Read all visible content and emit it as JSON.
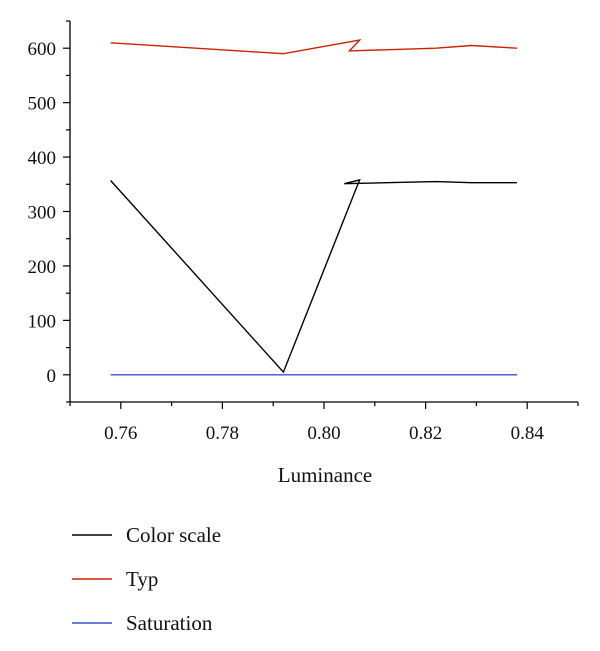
{
  "chart_data": {
    "type": "line",
    "title": "",
    "xlabel": "Luminance",
    "ylabel": "",
    "xlim": [
      0.75,
      0.85
    ],
    "ylim": [
      -50,
      650
    ],
    "grid": false,
    "legend_position": "bottom",
    "x_ticks": [
      0.76,
      0.78,
      0.8,
      0.82,
      0.84
    ],
    "x_tick_labels": [
      "0.76",
      "0.78",
      "0.80",
      "0.82",
      "0.84"
    ],
    "y_ticks": [
      0,
      100,
      200,
      300,
      400,
      500,
      600
    ],
    "y_tick_labels": [
      "0",
      "100",
      "200",
      "300",
      "400",
      "500",
      "600"
    ],
    "series": [
      {
        "name": "Color scale",
        "color": "#000000",
        "points": [
          [
            0.758,
            357
          ],
          [
            0.792,
            5
          ],
          [
            0.807,
            358
          ],
          [
            0.804,
            351
          ],
          [
            0.822,
            355
          ],
          [
            0.829,
            353
          ],
          [
            0.838,
            353
          ]
        ]
      },
      {
        "name": "Typ",
        "color": "#cc2200",
        "points": [
          [
            0.758,
            610
          ],
          [
            0.792,
            590
          ],
          [
            0.807,
            615
          ],
          [
            0.805,
            595
          ],
          [
            0.822,
            600
          ],
          [
            0.829,
            605
          ],
          [
            0.838,
            600
          ]
        ]
      },
      {
        "name": "Saturation",
        "color": "#3355cc",
        "points": [
          [
            0.758,
            0
          ],
          [
            0.838,
            0
          ]
        ]
      }
    ]
  }
}
